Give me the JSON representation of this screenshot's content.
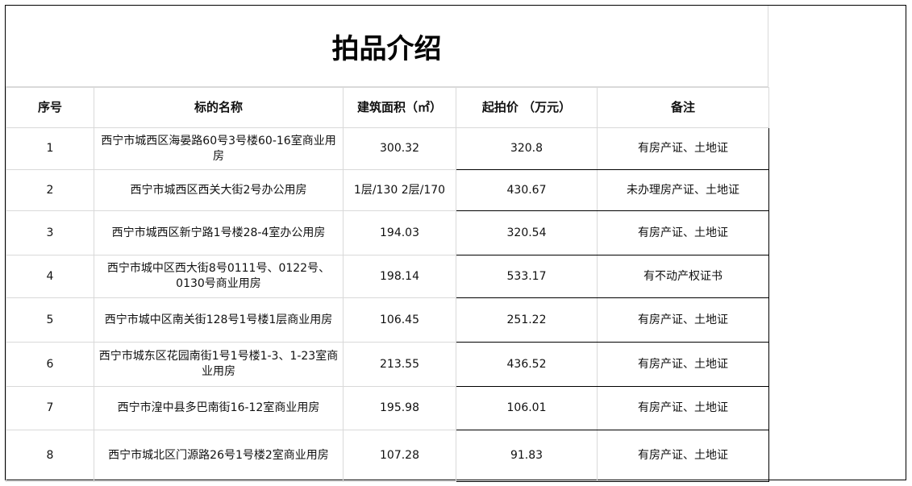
{
  "title": "拍品介绍",
  "headers": [
    "序号",
    "标的名称",
    "建筑面积（㎡）",
    "起拍价 （万元）",
    "备注"
  ],
  "rows": [
    [
      "1",
      "西宁市城西区海晏路60号3号楼60-16室商业用房",
      "300.32",
      "320.8",
      "有房产证、土地证"
    ],
    [
      "2",
      "西宁市城西区西关大街2号办公用房",
      "1层/130 2层/170",
      "430.67",
      "未办理房产证、土地证"
    ],
    [
      "3",
      "西宁市城西区新宁路1号楼28-4室办公用房",
      "194.03",
      "320.54",
      "有房产证、土地证"
    ],
    [
      "4",
      "西宁市城中区西大街8号0111号、0122号、0130号商业用房",
      "198.14",
      "533.17",
      "有不动产权证书"
    ],
    [
      "5",
      "西宁市城中区南关街128号1号楼1层商业用房",
      "106.45",
      "251.22",
      "有房产证、土地证"
    ],
    [
      "6",
      "西宁市城东区花园南街1号1号楼1-3、1-23室商业用房",
      "213.55",
      "436.52",
      "有房产证、土地证"
    ],
    [
      "7",
      "西宁市湟中县多巴南街16-12室商业用房",
      "195.98",
      "106.01",
      "有房产证、土地证"
    ],
    [
      "8",
      "西宁市城北区门源路26号1号楼2室商业用房",
      "107.28",
      "91.83",
      "有房产证、土地证"
    ]
  ]
}
